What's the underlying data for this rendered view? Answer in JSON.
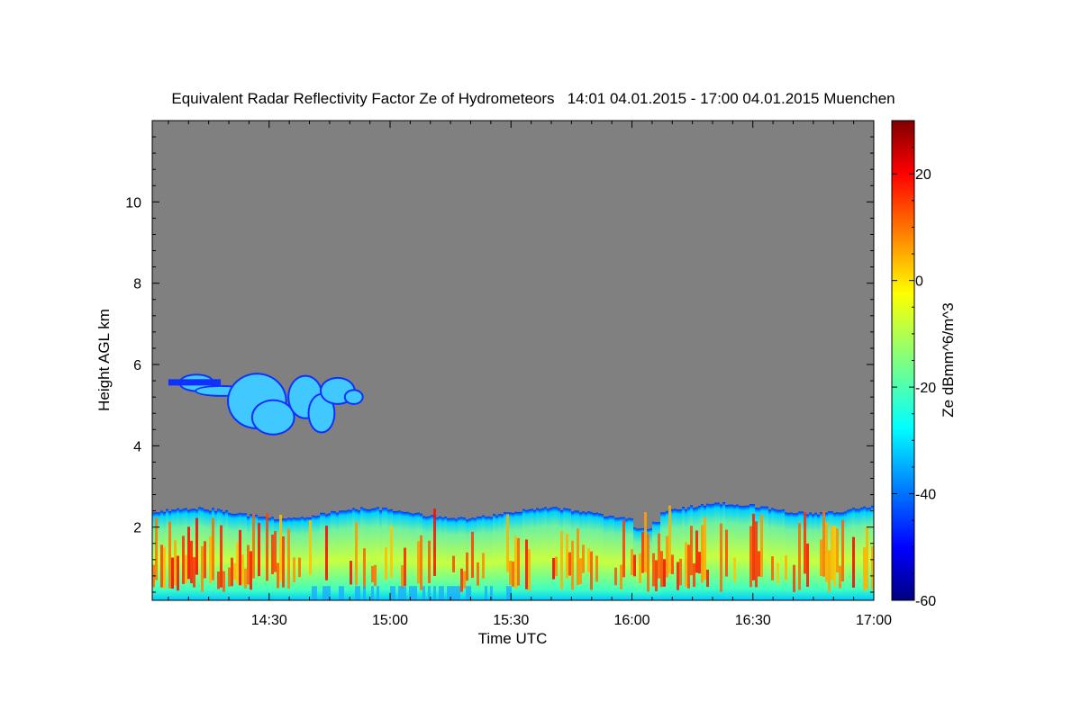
{
  "chart_data": {
    "type": "heatmap",
    "title": "Equivalent Radar Reflectivity Factor Ze of Hydrometeors   14:01 04.01.2015 - 17:00 04.01.2015 Muenchen",
    "xlabel": "Time UTC",
    "ylabel": "Height AGL km",
    "x_start": "14:01",
    "x_end": "17:00",
    "x_tick_labels": [
      "14:30",
      "15:00",
      "15:30",
      "16:00",
      "16:30",
      "17:00"
    ],
    "x_tick_minutes": [
      30,
      60,
      90,
      120,
      150,
      180
    ],
    "xlim_minutes": [
      1,
      180
    ],
    "y_tick_labels": [
      "2",
      "4",
      "6",
      "8",
      "10"
    ],
    "y_tick_values": [
      2,
      4,
      6,
      8,
      10
    ],
    "ylim_km": [
      0.2,
      12
    ],
    "colorbar": {
      "label": "Ze dBmm^6/m^3",
      "range": [
        -60,
        30
      ],
      "tick_labels": [
        "-60",
        "-40",
        "-20",
        "0",
        "20"
      ],
      "tick_values": [
        -60,
        -40,
        -20,
        0,
        20
      ],
      "colormap": "jet"
    },
    "background_color": "#808080",
    "regions": [
      {
        "name": "lower precipitation layer",
        "time_range_minutes": [
          1,
          180
        ],
        "height_range_km": [
          0.2,
          2.5
        ],
        "ze_range_dbz": [
          -45,
          15
        ]
      },
      {
        "name": "upper cloud layer",
        "time_range_minutes": [
          5,
          52
        ],
        "height_range_km": [
          4.2,
          5.9
        ],
        "ze_range_dbz": [
          -55,
          -28
        ]
      }
    ]
  }
}
